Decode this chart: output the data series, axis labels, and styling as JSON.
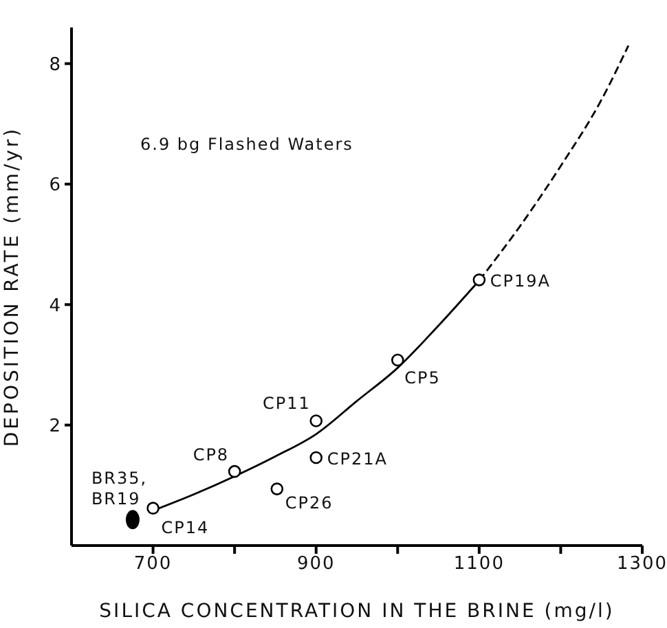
{
  "chart_data": {
    "type": "scatter",
    "xlabel": "SILICA CONCENTRATION IN THE BRINE (mg/l)",
    "ylabel": "DEPOSITION RATE (mm/yr)",
    "xlim": [
      600,
      1300
    ],
    "xticks": [
      700,
      {
        "value": 800,
        "label": null
      },
      900,
      {
        "value": 1000,
        "label": null
      },
      1100,
      {
        "value": 1200,
        "label": null
      },
      1300
    ],
    "ylim": [
      0,
      8.6
    ],
    "yticks": [
      2,
      4,
      6,
      8
    ],
    "grid": false,
    "legend": false,
    "series": [
      {
        "marker": "circle",
        "color": "#000000",
        "x": [
          700,
          800,
          852,
          900,
          900,
          1000,
          1100
        ],
        "values": [
          0.62,
          1.23,
          0.94,
          2.07,
          1.46,
          3.08,
          4.41
        ]
      },
      {
        "marker": "circle",
        "color": "#000000",
        "x": [
          675
        ],
        "values": [
          0.43
        ]
      },
      {
        "type": "line",
        "line_style": "solid",
        "color": "#000000",
        "x": [
          700,
          750,
          800,
          850,
          900,
          950,
          1000,
          1050,
          1100
        ],
        "values": [
          0.58,
          0.85,
          1.15,
          1.48,
          1.85,
          2.4,
          2.95,
          3.65,
          4.4
        ]
      },
      {
        "type": "line",
        "line_style": "dashed",
        "color": "#000000",
        "x": [
          1100,
          1150,
          1200,
          1250,
          1283
        ],
        "values": [
          4.4,
          5.3,
          6.3,
          7.4,
          8.3
        ]
      }
    ],
    "annotations": [
      "6.9 bg Flashed Waters",
      {
        "text": "BR35, BR19",
        "x": 675,
        "y": 0.43
      },
      {
        "text": "CP14",
        "x": 700,
        "y": 0.62
      },
      {
        "text": "CP8",
        "x": 800,
        "y": 1.23
      },
      {
        "text": "CP26",
        "x": 852,
        "y": 0.94
      },
      {
        "text": "CP11",
        "x": 900,
        "y": 2.07
      },
      {
        "text": "CP21A",
        "x": 900,
        "y": 1.46
      },
      {
        "text": "CP5",
        "x": 1000,
        "y": 3.08
      },
      {
        "text": "CP19A",
        "x": 1100,
        "y": 4.41
      }
    ]
  }
}
